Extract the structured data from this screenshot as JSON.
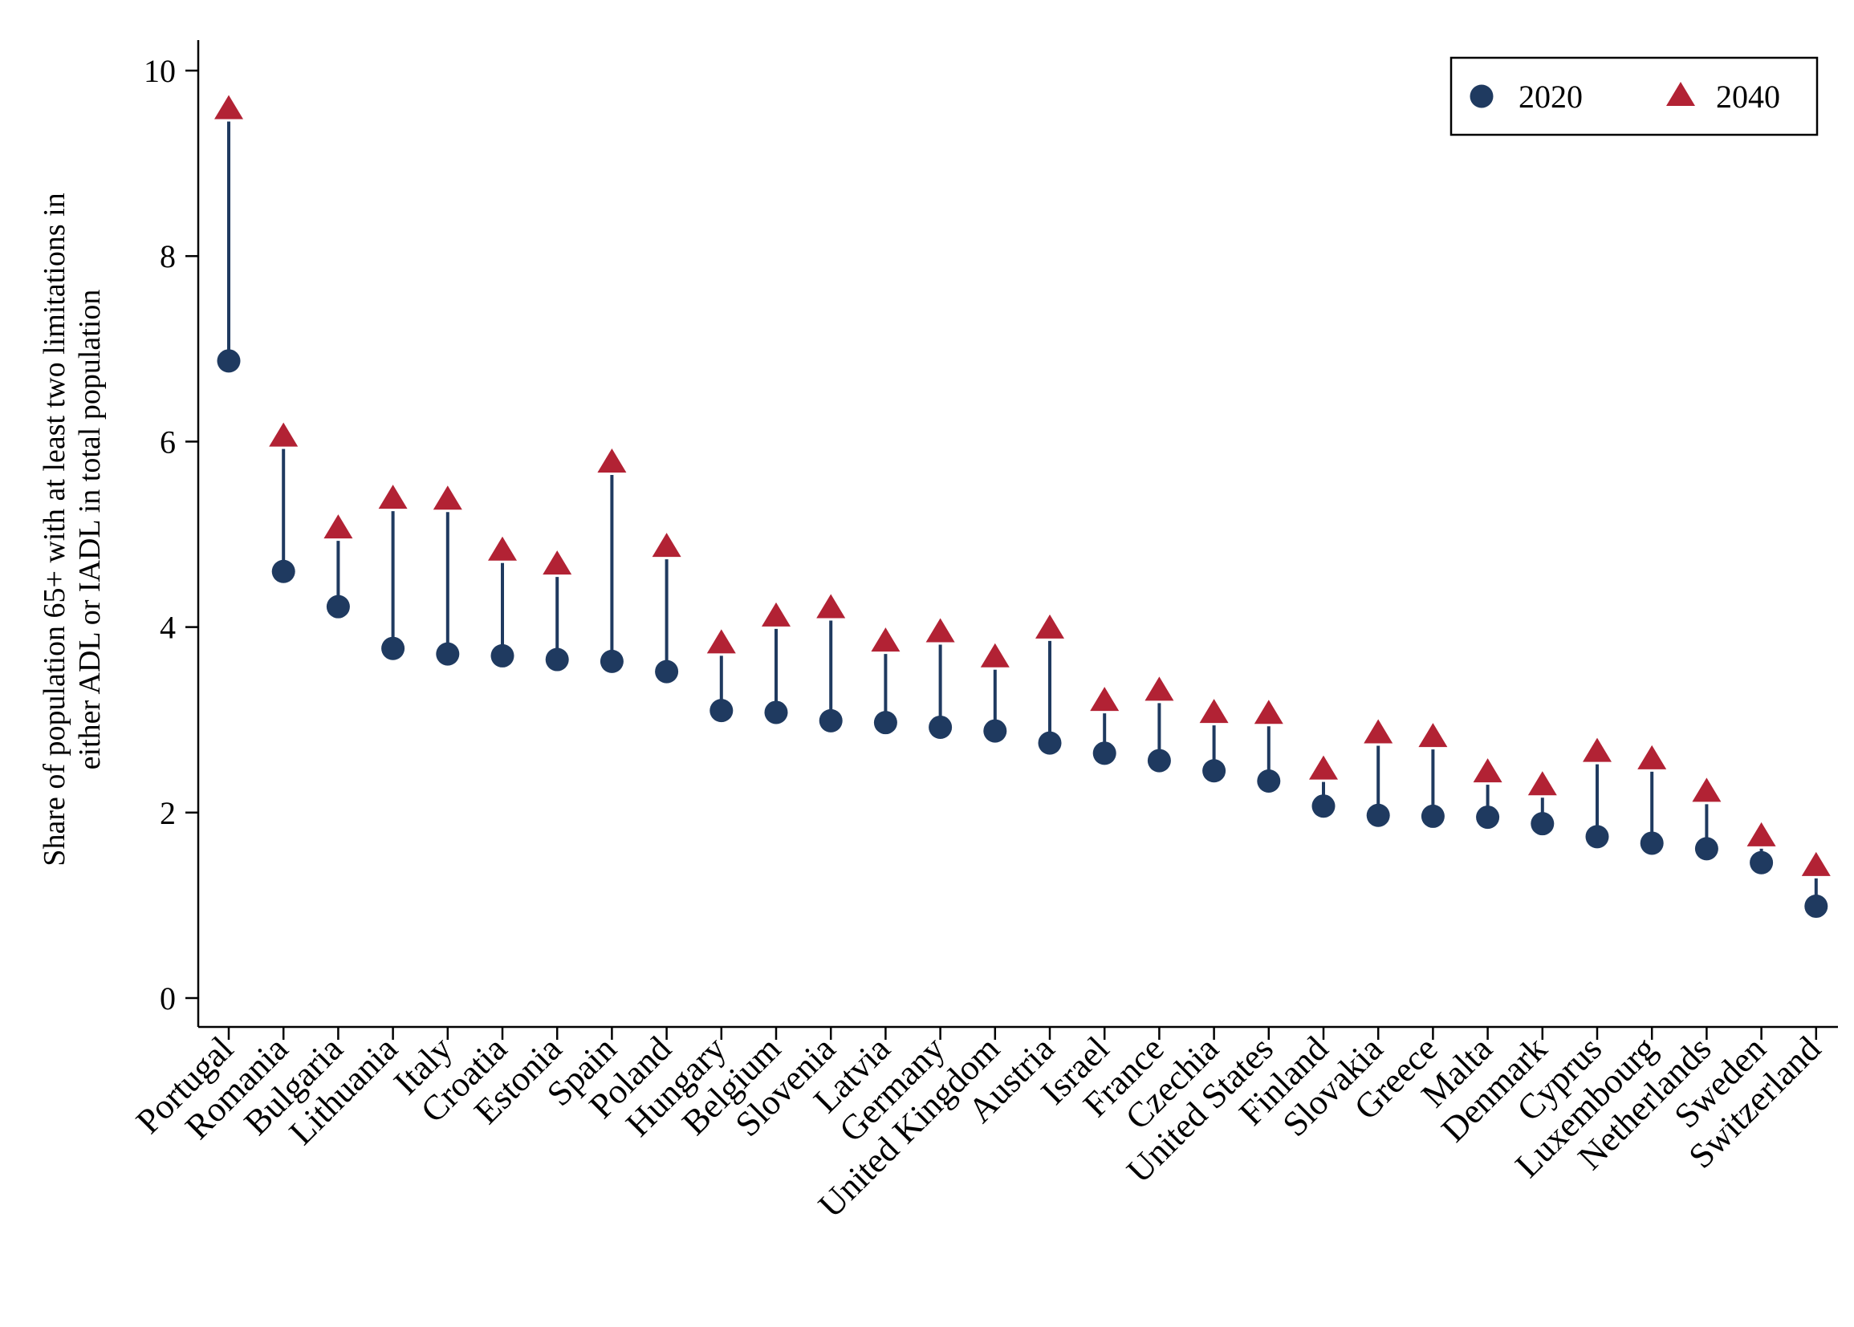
{
  "chart_data": {
    "type": "scatter",
    "title": "",
    "xlabel": "",
    "ylabel_lines": [
      "Share of population 65+ with at least two limitations in",
      "either ADL or IADL in total population"
    ],
    "ylim": [
      0,
      10
    ],
    "yticks": [
      0,
      2,
      4,
      6,
      8,
      10
    ],
    "grid": false,
    "legend_position": "top-right",
    "connector_color": "#1f3a60",
    "categories": [
      "Portugal",
      "Romania",
      "Bulgaria",
      "Lithuania",
      "Italy",
      "Croatia",
      "Estonia",
      "Spain",
      "Poland",
      "Hungary",
      "Belgium",
      "Slovenia",
      "Latvia",
      "Germany",
      "United Kingdom",
      "Austria",
      "Israel",
      "France",
      "Czechia",
      "United States",
      "Finland",
      "Slovakia",
      "Greece",
      "Malta",
      "Denmark",
      "Cyprus",
      "Luxembourg",
      "Netherlands",
      "Sweden",
      "Switzerland"
    ],
    "series": [
      {
        "name": "2020",
        "marker": "circle",
        "color": "#1f3a60",
        "values": [
          6.87,
          4.6,
          4.22,
          3.77,
          3.71,
          3.69,
          3.65,
          3.63,
          3.52,
          3.1,
          3.08,
          2.99,
          2.97,
          2.92,
          2.88,
          2.75,
          2.64,
          2.56,
          2.45,
          2.34,
          2.07,
          1.97,
          1.96,
          1.95,
          1.88,
          1.74,
          1.67,
          1.61,
          1.46,
          0.99
        ]
      },
      {
        "name": "2040",
        "marker": "triangle",
        "color": "#b22234",
        "values": [
          9.58,
          6.05,
          5.06,
          5.38,
          5.37,
          4.82,
          4.67,
          5.77,
          4.86,
          3.82,
          4.11,
          4.2,
          3.84,
          3.94,
          3.67,
          3.98,
          3.2,
          3.31,
          3.07,
          3.06,
          2.46,
          2.85,
          2.81,
          2.43,
          2.29,
          2.65,
          2.57,
          2.22,
          1.74,
          1.42
        ]
      }
    ]
  }
}
